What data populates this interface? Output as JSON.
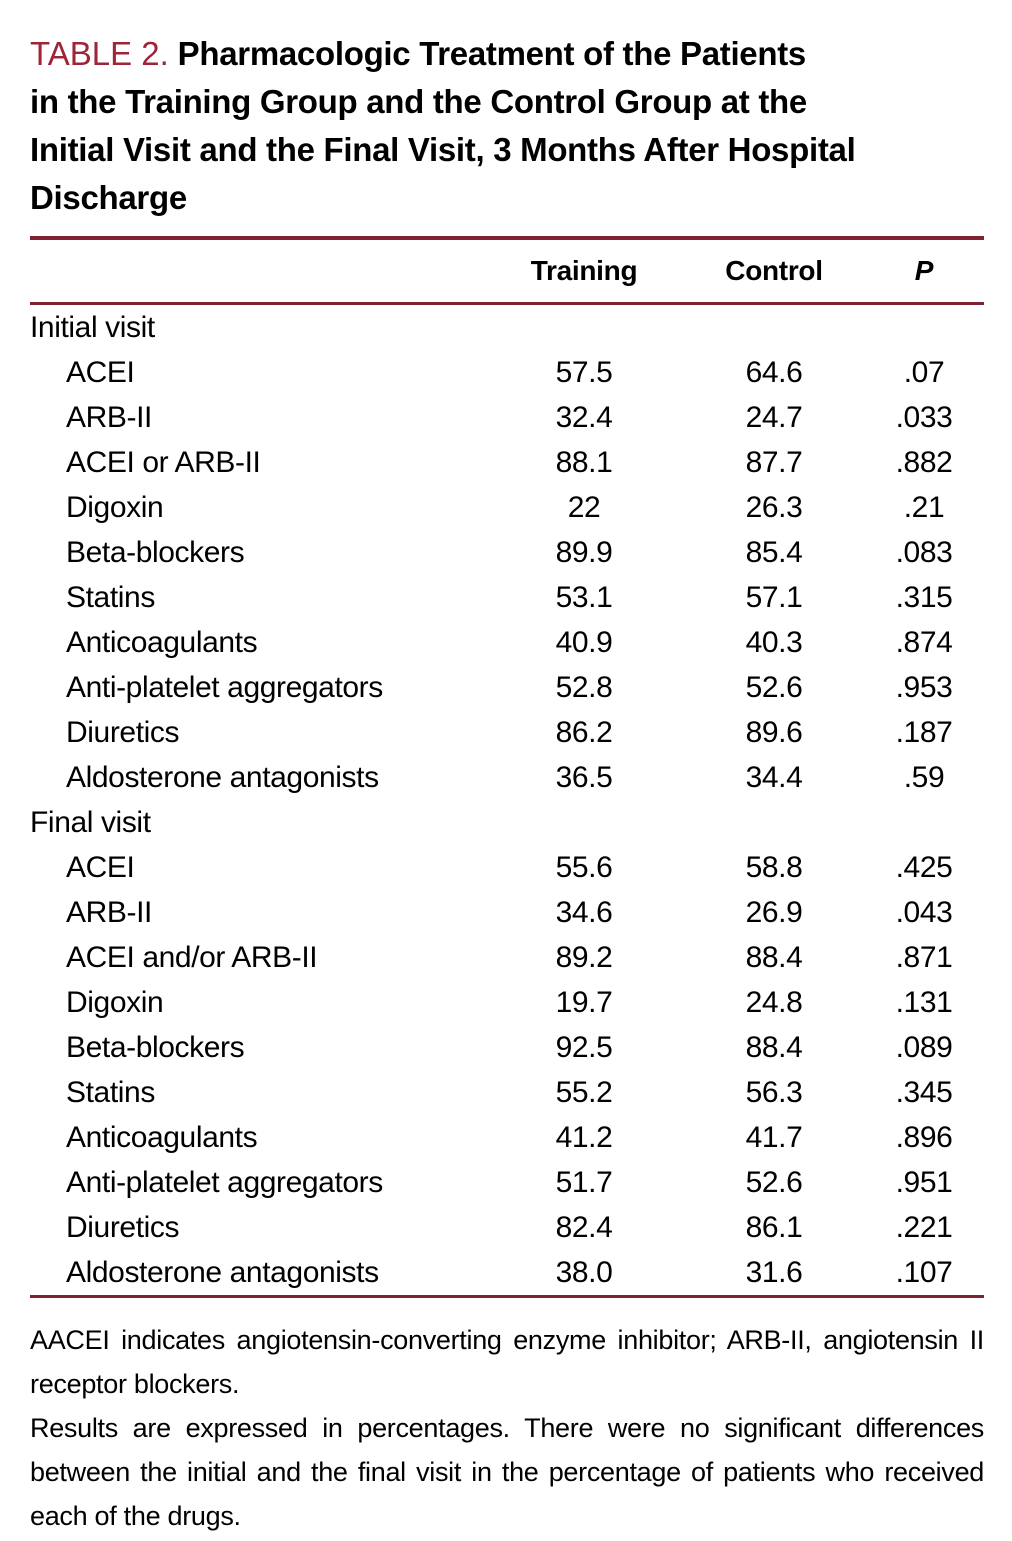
{
  "title": {
    "label": "TABLE 2.",
    "line1_rest": "Pharmacologic Treatment of the Patients",
    "lines": [
      "in the Training Group and the Control Group at the",
      "Initial Visit and the Final Visit, 3 Months After Hospital",
      "Discharge"
    ]
  },
  "table": {
    "columns": [
      "Training",
      "Control",
      "P"
    ],
    "sections": [
      {
        "name": "Initial visit",
        "rows": [
          [
            "ACEI",
            "57.5",
            "64.6",
            ".07"
          ],
          [
            "ARB-II",
            "32.4",
            "24.7",
            ".033"
          ],
          [
            "ACEI or ARB-II",
            "88.1",
            "87.7",
            ".882"
          ],
          [
            "Digoxin",
            "22",
            "26.3",
            ".21"
          ],
          [
            "Beta-blockers",
            "89.9",
            "85.4",
            ".083"
          ],
          [
            "Statins",
            "53.1",
            "57.1",
            ".315"
          ],
          [
            "Anticoagulants",
            "40.9",
            "40.3",
            ".874"
          ],
          [
            "Anti-platelet aggregators",
            "52.8",
            "52.6",
            ".953"
          ],
          [
            "Diuretics",
            "86.2",
            "89.6",
            ".187"
          ],
          [
            "Aldosterone antagonists",
            "36.5",
            "34.4",
            ".59"
          ]
        ]
      },
      {
        "name": "Final visit",
        "rows": [
          [
            "ACEI",
            "55.6",
            "58.8",
            ".425"
          ],
          [
            "ARB-II",
            "34.6",
            "26.9",
            ".043"
          ],
          [
            "ACEI and/or ARB-II",
            "89.2",
            "88.4",
            ".871"
          ],
          [
            "Digoxin",
            "19.7",
            "24.8",
            ".131"
          ],
          [
            "Beta-blockers",
            "92.5",
            "88.4",
            ".089"
          ],
          [
            "Statins",
            "55.2",
            "56.3",
            ".345"
          ],
          [
            "Anticoagulants",
            "41.2",
            "41.7",
            ".896"
          ],
          [
            "Anti-platelet aggregators",
            "51.7",
            "52.6",
            ".951"
          ],
          [
            "Diuretics",
            "82.4",
            "86.1",
            ".221"
          ],
          [
            "Aldosterone antagonists",
            "38.0",
            "31.6",
            ".107"
          ]
        ]
      }
    ]
  },
  "footnotes": [
    "AACEI indicates angiotensin-converting enzyme inhibitor; ARB-II, angiotensin II receptor blockers.",
    "Results are expressed in percentages. There were no significant differences between the initial and the final visit in the percentage of patients who received each of the drugs."
  ],
  "colors": {
    "table_label": "#9e2438",
    "rule": "#7e2130",
    "text": "#000000",
    "background": "#ffffff"
  }
}
